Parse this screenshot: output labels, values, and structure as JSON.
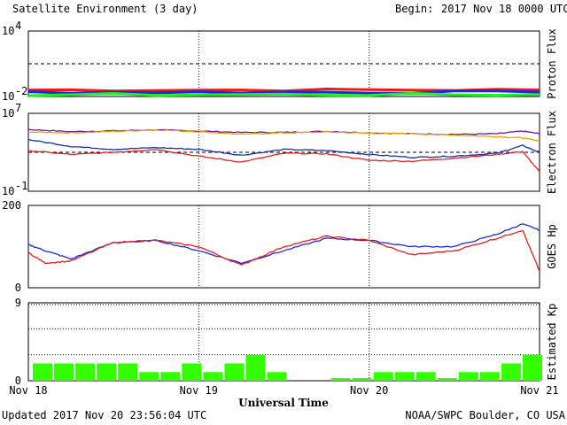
{
  "header": {
    "title": "Satellite Environment (3 day)",
    "begin_label": "Begin:",
    "begin_value": "2017 Nov 18 0000 UTC"
  },
  "footer": {
    "updated": "Updated 2017 Nov 20 23:56:04 UTC",
    "credit": "NOAA/SWPC Boulder, CO USA"
  },
  "x_axis": {
    "label": "Universal Time",
    "ticks": [
      "Nov 18",
      "Nov 19",
      "Nov 20",
      "Nov 21"
    ],
    "range_days": [
      0,
      3
    ]
  },
  "colors": {
    "red": "#e81c1c",
    "blue": "#1c28e0",
    "green": "#22ee22",
    "orange": "#f0a000",
    "purple": "#6a1aa0",
    "dark_blue": "#1030b0",
    "bar_green": "#33ff00"
  },
  "chart_data": [
    {
      "type": "line",
      "ylabel": "Proton Flux",
      "scale": "log",
      "ylim": [
        0.01,
        10000
      ],
      "yticks": [
        {
          "base": "10",
          "exp": "4"
        },
        {
          "base": "10",
          "exp": "-2"
        }
      ],
      "threshold_dashed": 10,
      "series": [
        {
          "color": "red",
          "x": [
            0,
            3
          ],
          "y": [
            0.04,
            0.04
          ]
        },
        {
          "color": "blue",
          "x": [
            0,
            3
          ],
          "y": [
            0.025,
            0.025
          ]
        },
        {
          "color": "green",
          "x": [
            0,
            3
          ],
          "y": [
            0.015,
            0.015
          ]
        }
      ]
    },
    {
      "type": "line",
      "ylabel": "Electron Flux",
      "scale": "log",
      "ylim": [
        0.1,
        10000000
      ],
      "yticks": [
        {
          "base": "10",
          "exp": "7"
        },
        {
          "base": "10",
          "exp": "-1"
        }
      ],
      "threshold_dashed": 1000,
      "series": [
        {
          "color": "purple",
          "x": [
            0,
            0.25,
            0.5,
            0.75,
            1.0,
            1.25,
            1.5,
            1.75,
            2.0,
            2.25,
            2.5,
            2.75,
            2.9,
            3.0
          ],
          "y": [
            220000,
            130000,
            160000,
            200000,
            150000,
            110000,
            110000,
            140000,
            100000,
            80000,
            70000,
            80000,
            150000,
            80000
          ]
        },
        {
          "color": "orange",
          "x": [
            0,
            0.25,
            0.5,
            0.75,
            1.0,
            1.25,
            1.5,
            1.75,
            2.0,
            2.25,
            2.5,
            2.75,
            2.9,
            3.0
          ],
          "y": [
            120000,
            100000,
            140000,
            200000,
            130000,
            70000,
            100000,
            120000,
            90000,
            80000,
            60000,
            40000,
            30000,
            15000
          ]
        },
        {
          "color": "dark_blue",
          "x": [
            0,
            0.25,
            0.5,
            0.75,
            1.0,
            1.25,
            1.5,
            1.75,
            2.0,
            2.25,
            2.5,
            2.75,
            2.9,
            3.0
          ],
          "y": [
            20000,
            4000,
            2000,
            3000,
            2000,
            500,
            2000,
            1500,
            600,
            300,
            400,
            800,
            5000,
            1000
          ]
        },
        {
          "color": "red",
          "x": [
            0,
            0.25,
            0.5,
            0.75,
            1.0,
            1.25,
            1.5,
            1.75,
            2.0,
            2.25,
            2.5,
            2.75,
            2.9,
            3.0
          ],
          "y": [
            1500,
            600,
            1000,
            2000,
            400,
            100,
            800,
            700,
            150,
            120,
            250,
            600,
            1200,
            10
          ]
        }
      ]
    },
    {
      "type": "line",
      "ylabel": "GOES Hp",
      "scale": "linear",
      "ylim": [
        0,
        200
      ],
      "yticks": [
        200,
        0
      ],
      "series": [
        {
          "color": "blue",
          "x": [
            0,
            0.1,
            0.25,
            0.5,
            0.75,
            1.0,
            1.25,
            1.5,
            1.75,
            2.0,
            2.25,
            2.5,
            2.75,
            2.9,
            3.0
          ],
          "y": [
            105,
            90,
            70,
            110,
            115,
            90,
            60,
            90,
            120,
            115,
            100,
            100,
            130,
            155,
            140
          ]
        },
        {
          "color": "red",
          "x": [
            0,
            0.1,
            0.25,
            0.5,
            0.75,
            1.0,
            1.25,
            1.5,
            1.75,
            2.0,
            2.25,
            2.5,
            2.75,
            2.9,
            3.0
          ],
          "y": [
            85,
            60,
            65,
            110,
            115,
            100,
            55,
            100,
            125,
            115,
            80,
            90,
            120,
            140,
            40
          ]
        }
      ]
    },
    {
      "type": "bar",
      "ylabel": "Estimated Kp",
      "ylim": [
        0,
        9
      ],
      "yticks": [
        9,
        0
      ],
      "values": [
        2,
        2,
        2,
        2,
        2,
        1,
        1,
        2,
        1,
        2,
        3,
        1,
        0.3,
        0.3,
        1,
        1,
        1,
        0.3,
        1,
        1,
        2,
        3
      ]
    }
  ]
}
